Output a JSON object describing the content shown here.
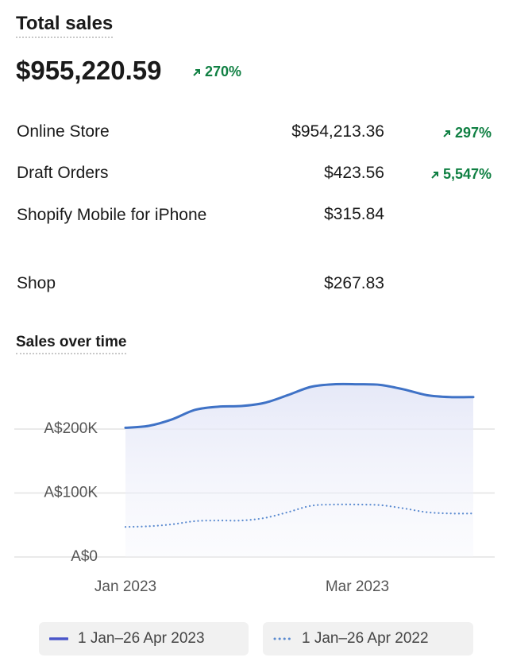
{
  "header": {
    "title": "Total sales",
    "total": "$955,220.59",
    "change": "270%"
  },
  "channels": [
    {
      "name": "Online Store",
      "amount": "$954,213.36",
      "change": "297%"
    },
    {
      "name": "Draft Orders",
      "amount": "$423.56",
      "change": "5,547%"
    },
    {
      "name": "Shopify Mobile for iPhone",
      "amount": "$315.84"
    },
    {
      "name": "Shop",
      "amount": "$267.83"
    }
  ],
  "chart_data": {
    "type": "line",
    "title": "Sales over time",
    "categories": [
      "Jan 2023",
      null,
      null,
      null,
      null,
      null,
      null,
      null,
      null,
      null,
      "Mar 2023",
      null,
      null,
      null,
      null,
      null
    ],
    "series": [
      {
        "name": "1 Jan–26 Apr 2023",
        "color": "#3f72c6",
        "style": "solid",
        "values": [
          202000,
          205000,
          215000,
          230000,
          235000,
          236000,
          241000,
          253000,
          266000,
          270000,
          270000,
          269000,
          262000,
          253000,
          250000,
          250000
        ]
      },
      {
        "name": "1 Jan–26 Apr 2022",
        "color": "#5b8bd0",
        "style": "dotted",
        "values": [
          47000,
          48000,
          51000,
          56000,
          57000,
          57000,
          61000,
          70000,
          80000,
          82000,
          82000,
          81000,
          76000,
          70000,
          68000,
          68000
        ]
      }
    ],
    "ylim": [
      0,
      300000
    ],
    "yticks": [
      {
        "value": 0,
        "label": "A$0"
      },
      {
        "value": 100000,
        "label": "A$100K"
      },
      {
        "value": 200000,
        "label": "A$200K"
      }
    ],
    "grid": true
  }
}
